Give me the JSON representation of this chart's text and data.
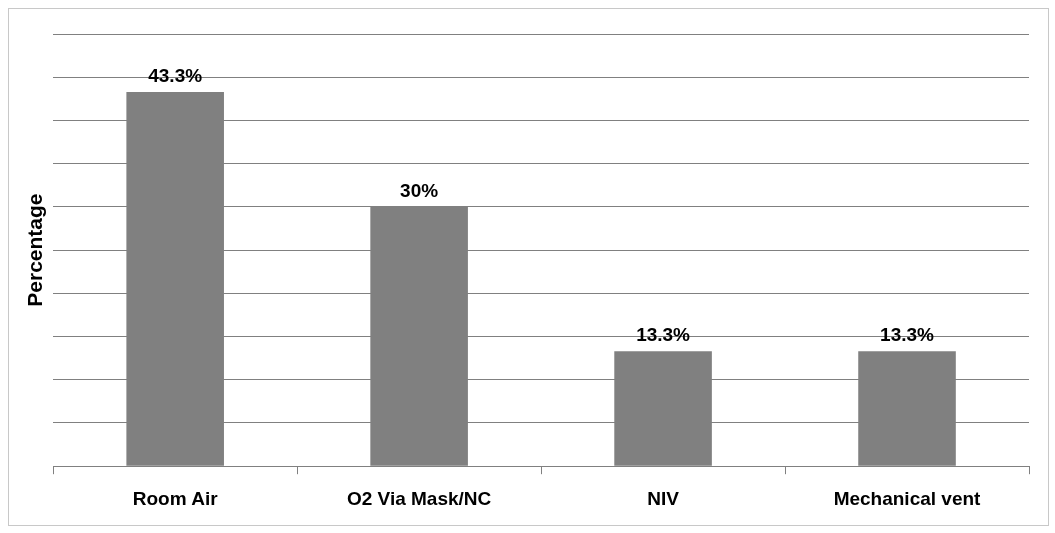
{
  "chart_data": {
    "type": "bar",
    "ylabel": "Percentage",
    "categories": [
      "Room Air",
      "O2 Via Mask/NC",
      "NIV",
      "Mechanical vent"
    ],
    "values": [
      43.3,
      30,
      13.3,
      13.3
    ],
    "value_labels": [
      "43.3%",
      "30%",
      "13.3%",
      "13.3%"
    ],
    "color": "#808080",
    "ylim": [
      0,
      50
    ],
    "yticks": [
      {
        "value": 0,
        "label": null
      },
      {
        "value": 5,
        "label": null
      },
      {
        "value": 10,
        "label": null
      },
      {
        "value": 15,
        "label": null
      },
      {
        "value": 20,
        "label": null
      },
      {
        "value": 25,
        "label": null
      },
      {
        "value": 30,
        "label": null
      },
      {
        "value": 35,
        "label": null
      },
      {
        "value": 40,
        "label": null
      },
      {
        "value": 45,
        "label": null
      },
      {
        "value": 50,
        "label": null
      }
    ],
    "grid": "y",
    "tick_labels": "x"
  }
}
